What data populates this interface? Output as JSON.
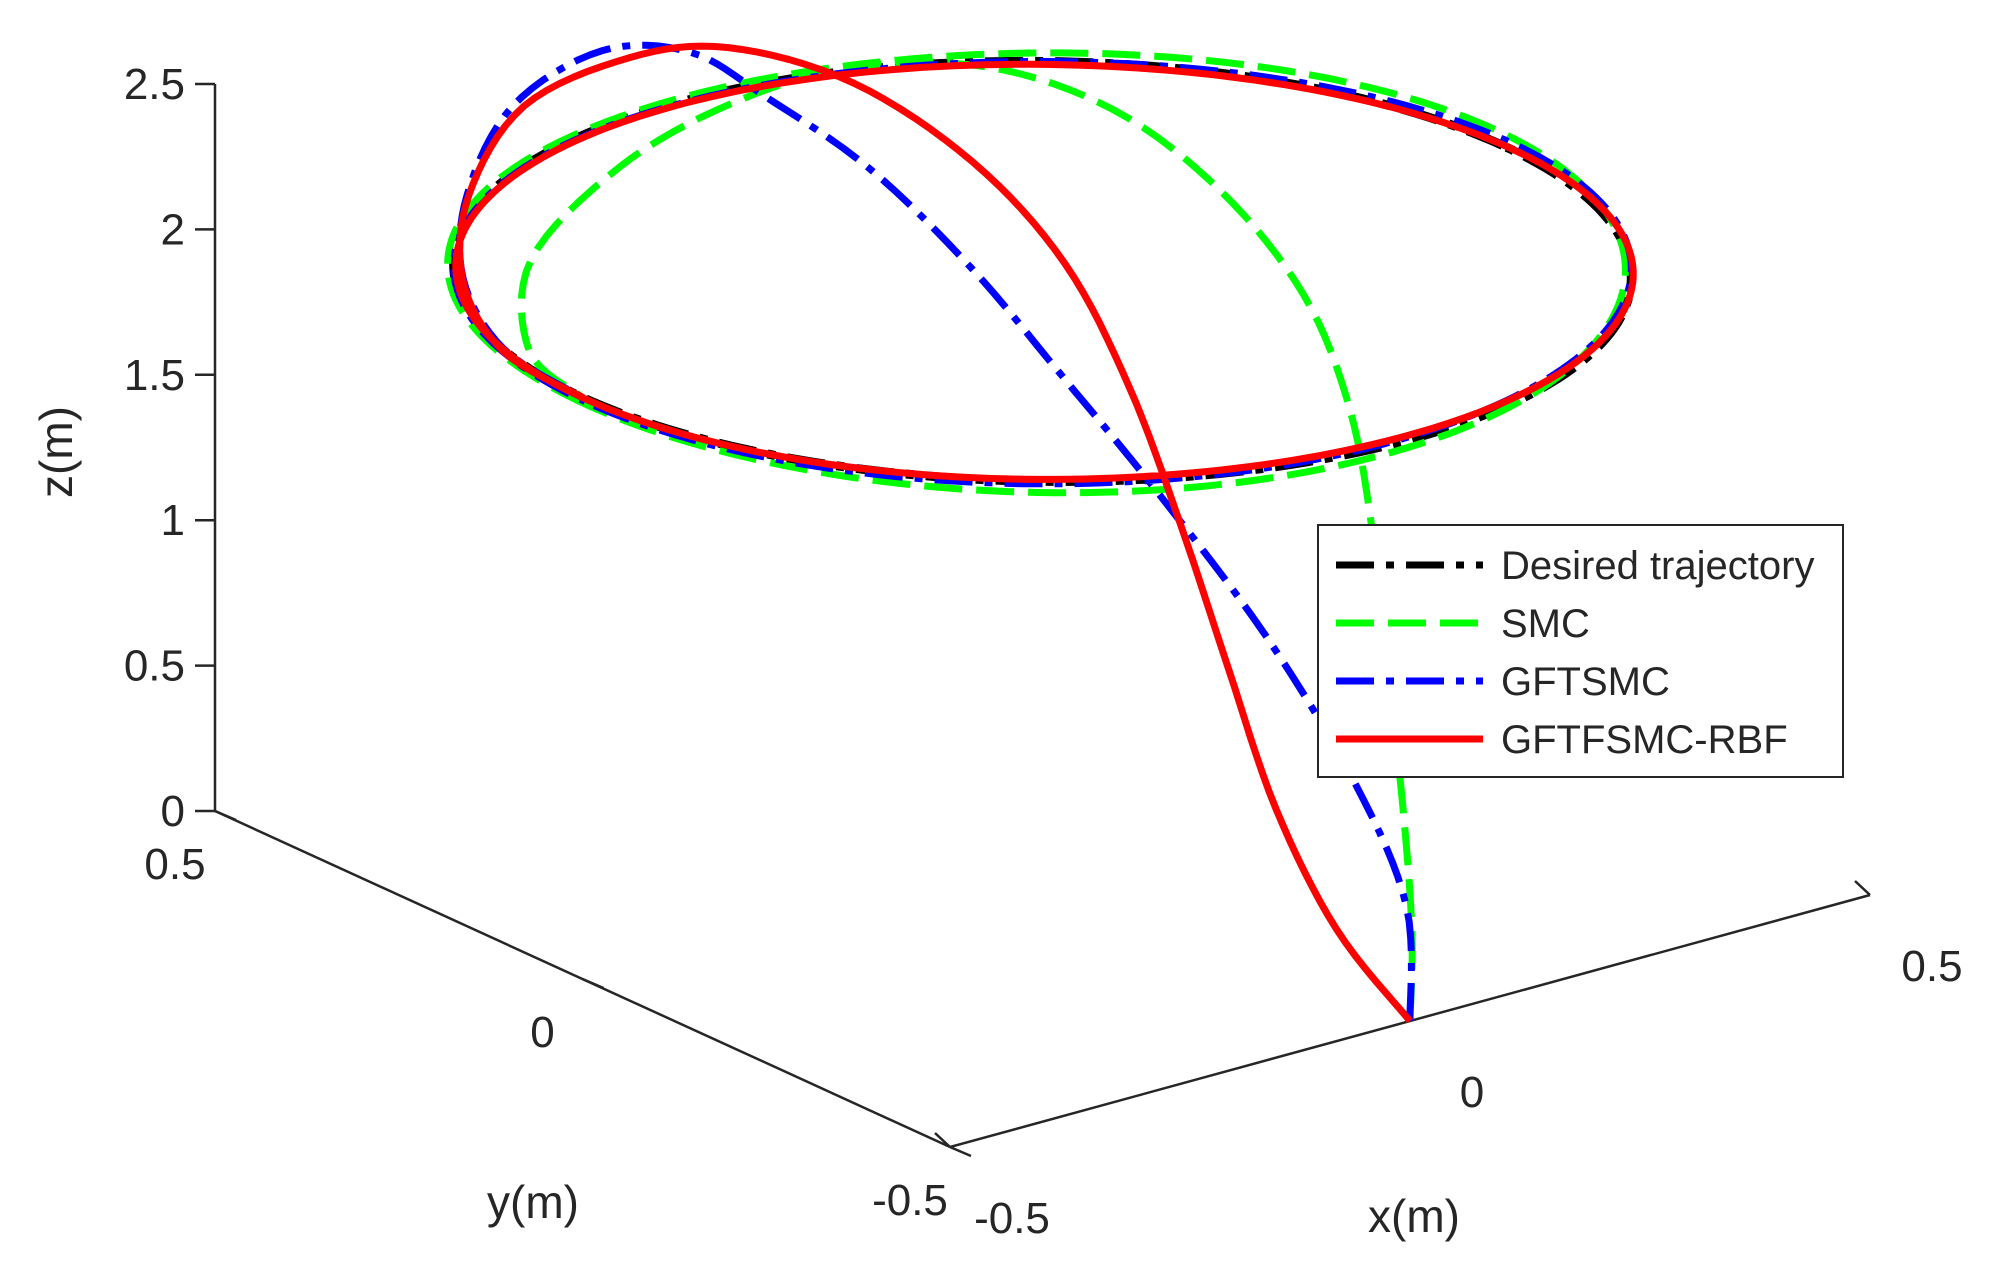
{
  "chart_data": {
    "type": "line",
    "projection": "3d",
    "title": "",
    "xlabel": "x(m)",
    "ylabel": "y(m)",
    "zlabel": "z(m)",
    "xlim": [
      -0.5,
      0.5
    ],
    "ylim": [
      -0.5,
      0.5
    ],
    "zlim": [
      0,
      2.5
    ],
    "x_ticks": [
      "-0.5",
      "0",
      "0.5"
    ],
    "y_ticks": [
      "-0.5",
      "0",
      "0.5"
    ],
    "z_ticks": [
      "0",
      "0.5",
      "1",
      "1.5",
      "2",
      "2.5"
    ],
    "grid": false,
    "legend_position": "right",
    "circle_radius": 0.5,
    "circle_height": 2,
    "series": [
      {
        "name": "Desired trajectory",
        "color": "#000000",
        "style": "dash-dot",
        "points": []
      },
      {
        "name": "SMC",
        "color": "#00ff00",
        "style": "dashed",
        "points": [
          [
            0,
            -0.5,
            0
          ],
          [
            0.05,
            -0.44,
            0.2
          ],
          [
            0.12,
            -0.34,
            0.45
          ],
          [
            0.2,
            -0.22,
            0.7
          ],
          [
            0.28,
            -0.1,
            0.95
          ],
          [
            0.35,
            0.02,
            1.2
          ],
          [
            0.38,
            0.12,
            1.45
          ],
          [
            0.37,
            0.22,
            1.7
          ],
          [
            0.31,
            0.29,
            1.95
          ],
          [
            0.18,
            0.3,
            2.2
          ],
          [
            0.0,
            0.26,
            2.4
          ],
          [
            -0.18,
            0.2,
            2.5
          ],
          [
            -0.34,
            0.15,
            2.48
          ],
          [
            -0.46,
            0.12,
            2.3
          ],
          [
            -0.51,
            0.06,
            2.1
          ],
          [
            -0.5,
            0.0,
            2.0
          ]
        ]
      },
      {
        "name": "GFTSMC",
        "color": "#0000ff",
        "style": "dash-dot",
        "points": [
          [
            0,
            -0.5,
            0
          ],
          [
            0.06,
            -0.42,
            0.25
          ],
          [
            0.1,
            -0.3,
            0.5
          ],
          [
            0.13,
            -0.14,
            0.8
          ],
          [
            0.14,
            0.02,
            1.1
          ],
          [
            0.14,
            0.15,
            1.35
          ],
          [
            0.13,
            0.26,
            1.6
          ],
          [
            0.1,
            0.36,
            1.85
          ],
          [
            0.05,
            0.44,
            2.05
          ],
          [
            0.0,
            0.48,
            2.2
          ],
          [
            -0.08,
            0.5,
            2.25
          ],
          [
            -0.2,
            0.47,
            2.2
          ],
          [
            -0.33,
            0.37,
            2.12
          ],
          [
            -0.43,
            0.25,
            2.06
          ],
          [
            -0.49,
            0.12,
            2.02
          ],
          [
            -0.5,
            0.0,
            2.0
          ]
        ]
      },
      {
        "name": "GFTFSMC-RBF",
        "color": "#ff0000",
        "style": "solid",
        "points": [
          [
            0,
            -0.5,
            0
          ],
          [
            0.0,
            -0.4,
            0.2
          ],
          [
            0.03,
            -0.28,
            0.45
          ],
          [
            0.09,
            -0.14,
            0.72
          ],
          [
            0.15,
            0.0,
            1.0
          ],
          [
            0.19,
            0.12,
            1.3
          ],
          [
            0.2,
            0.22,
            1.6
          ],
          [
            0.18,
            0.32,
            1.85
          ],
          [
            0.13,
            0.42,
            2.05
          ],
          [
            0.05,
            0.49,
            2.16
          ],
          [
            -0.05,
            0.5,
            2.2
          ],
          [
            -0.18,
            0.48,
            2.17
          ],
          [
            -0.32,
            0.38,
            2.1
          ],
          [
            -0.43,
            0.25,
            2.05
          ],
          [
            -0.49,
            0.12,
            2.01
          ],
          [
            -0.5,
            0.0,
            2.0
          ]
        ]
      }
    ]
  }
}
